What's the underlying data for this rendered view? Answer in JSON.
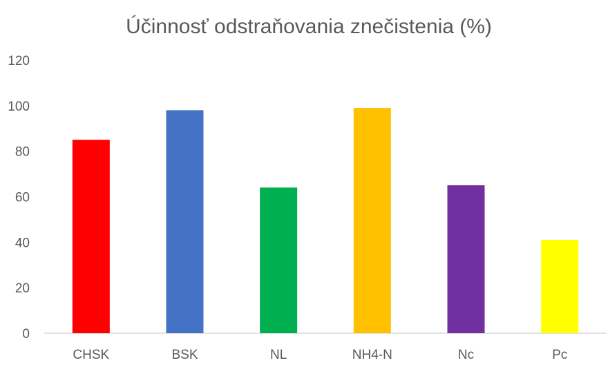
{
  "chart_data": {
    "type": "bar",
    "title": "Účinnosť odstraňovania znečistenia (%)",
    "xlabel": "",
    "ylabel": "",
    "categories": [
      "CHSK",
      "BSK",
      "NL",
      "NH4-N",
      "Nc",
      "Pc"
    ],
    "values": [
      85,
      98,
      64,
      99,
      65,
      41
    ],
    "colors": [
      "#ff0000",
      "#4472c4",
      "#00b050",
      "#ffc000",
      "#7030a0",
      "#ffff00"
    ],
    "ylim": [
      0,
      120
    ],
    "yticks": [
      0,
      20,
      40,
      60,
      80,
      100,
      120
    ],
    "grid": false,
    "legend": "none",
    "axis_color": "#d9d9d9",
    "text_color": "#595959"
  }
}
